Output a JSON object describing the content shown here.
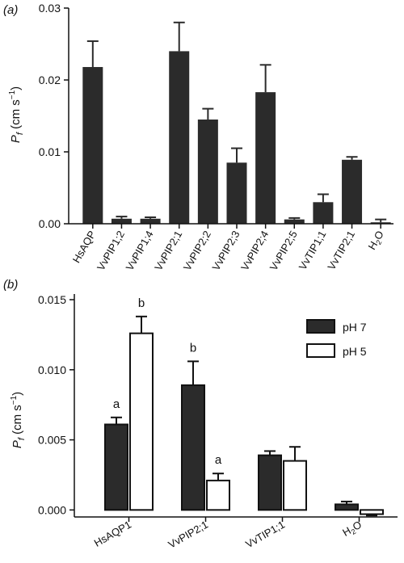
{
  "chart_data": [
    {
      "type": "bar",
      "panel_label": "(a)",
      "ylabel_main": "P",
      "ylabel_sub": "f",
      "ylabel_rest": " (cm s",
      "ylabel_sup": "−1",
      "ylabel_close": ")",
      "ylim": [
        0,
        0.03
      ],
      "yticks": [
        "0.00",
        "0.01",
        "0.02",
        "0.03"
      ],
      "categories": [
        "HsAQP",
        "VvPIP1;2",
        "VvPIP1;4",
        "VvPIP2;1",
        "VvPIP2;2",
        "VvPIP2;3",
        "VvPIP2;4",
        "VvPIP2;5",
        "VvTIP1;1",
        "VvTIP2;1",
        "H2O"
      ],
      "category_main": [
        "HsAQP",
        "VvPIP1;2",
        "VvPIP1;4",
        "VvPIP2;1",
        "VvPIP2;2",
        "VvPIP2;3",
        "VvPIP2;4",
        "VvPIP2;5",
        "VvTIP1;1",
        "VvTIP2;1",
        "H"
      ],
      "category_sub": [
        "",
        "",
        "",
        "",
        "",
        "",
        "",
        "",
        "",
        "",
        "2"
      ],
      "category_tail": [
        "",
        "",
        "",
        "",
        "",
        "",
        "",
        "",
        "",
        "",
        "O"
      ],
      "values": [
        0.0218,
        0.0007,
        0.0007,
        0.024,
        0.0145,
        0.0085,
        0.0183,
        0.0006,
        0.003,
        0.0089,
        0.0002
      ],
      "errors": [
        0.0036,
        0.0003,
        0.0002,
        0.004,
        0.0015,
        0.002,
        0.0038,
        0.0002,
        0.0011,
        0.0004,
        0.0004
      ],
      "color": "#2b2b2b"
    },
    {
      "type": "bar",
      "panel_label": "(b)",
      "ylabel_main": "P",
      "ylabel_sub": "f",
      "ylabel_rest": " (cm s",
      "ylabel_sup": "−1",
      "ylabel_close": ")",
      "ylim": [
        -0.0005,
        0.015
      ],
      "yticks": [
        "0.000",
        "0.005",
        "0.010",
        "0.015"
      ],
      "categories": [
        "HsAQP1",
        "VvPIP2;1",
        "VvTIP1;1",
        "H2O"
      ],
      "category_main": [
        "HsAQP1",
        "VvPIP2;1",
        "VvTIP1;1",
        "H"
      ],
      "category_sub": [
        "",
        "",
        "",
        "2"
      ],
      "category_tail": [
        "",
        "",
        "",
        "O"
      ],
      "series": [
        {
          "name": "pH 7",
          "fill": "#2b2b2b",
          "values": [
            0.0061,
            0.0089,
            0.0039,
            0.0004
          ],
          "errors": [
            0.0005,
            0.0017,
            0.0003,
            0.0002
          ],
          "labels": [
            "a",
            "b",
            "",
            ""
          ]
        },
        {
          "name": "pH 5",
          "fill": "#ffffff",
          "values": [
            0.0126,
            0.0021,
            0.0035,
            -0.0003
          ],
          "errors": [
            0.0012,
            0.0005,
            0.001,
            0.0001
          ],
          "labels": [
            "b",
            "a",
            "",
            ""
          ]
        }
      ],
      "legend_position": "top-right"
    }
  ]
}
